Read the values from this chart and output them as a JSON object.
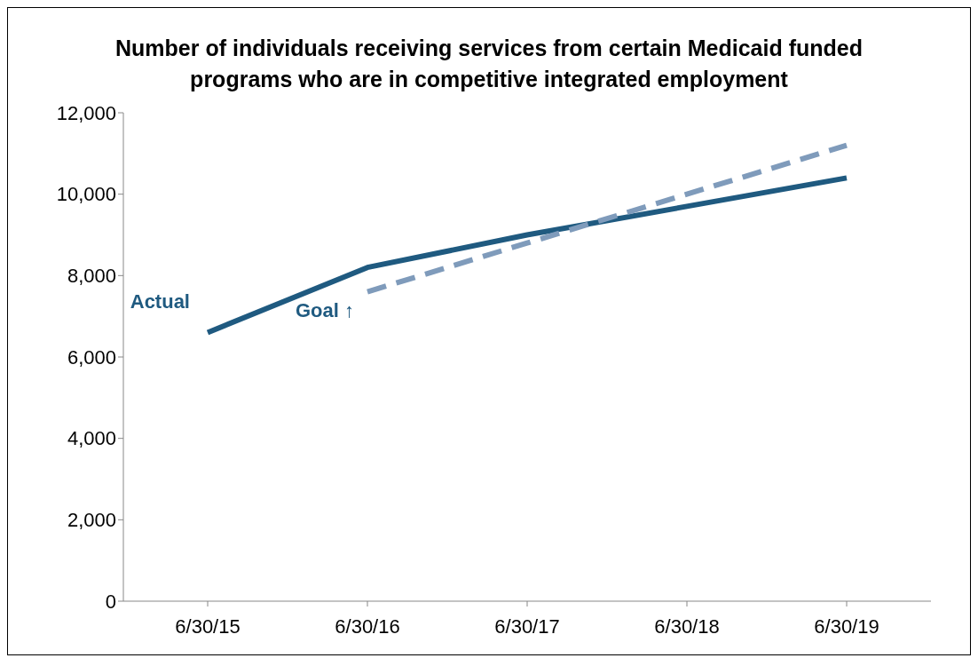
{
  "chart_data": {
    "type": "line",
    "title": "Number of individuals receiving services from certain Medicaid funded programs who are in competitive integrated employment",
    "categories": [
      "6/30/15",
      "6/30/16",
      "6/30/17",
      "6/30/18",
      "6/30/19"
    ],
    "series": [
      {
        "name": "Actual",
        "color": "#1f5a80",
        "values": [
          6600,
          8200,
          9000,
          9700,
          10400
        ],
        "line_style": "solid"
      },
      {
        "name": "Goal ↑",
        "color": "#7f9bbb",
        "values": [
          null,
          7600,
          8800,
          10000,
          11200
        ],
        "line_style": "dashed"
      }
    ],
    "ylim": [
      0,
      12000
    ],
    "yticks": [
      0,
      {
        "value": 2000,
        "label": "2,000"
      },
      {
        "value": 4000,
        "label": "4,000"
      },
      {
        "value": 6000,
        "label": "6,000"
      },
      {
        "value": 8000,
        "label": "8,000"
      },
      {
        "value": 10000,
        "label": "10,000"
      },
      {
        "value": 12000,
        "label": "12,000"
      }
    ],
    "legend": false,
    "marker": "none"
  }
}
